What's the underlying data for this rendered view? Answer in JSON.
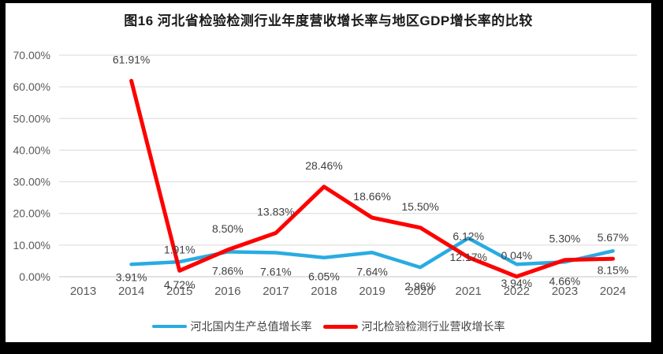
{
  "title": "图16 河北省检验检测行业年度营收增长率与地区GDP增长率的比较",
  "chart_data": {
    "type": "line",
    "title": "图16 河北省检验检测行业年度营收增长率与地区GDP增长率的比较",
    "categories": [
      "2013",
      "2014",
      "2015",
      "2016",
      "2017",
      "2018",
      "2019",
      "2020",
      "2021",
      "2022",
      "2023",
      "2024"
    ],
    "series": [
      {
        "name": "河北国内生产总值增长率",
        "color": "#29ABE2",
        "values": [
          null,
          3.91,
          4.72,
          7.86,
          7.61,
          6.05,
          7.64,
          2.96,
          12.17,
          3.94,
          4.66,
          8.15
        ]
      },
      {
        "name": "河北检验检测行业营收增长率",
        "color": "#FF0000",
        "values": [
          null,
          61.91,
          1.91,
          8.5,
          13.83,
          28.46,
          18.66,
          15.5,
          6.12,
          0.04,
          5.3,
          5.67
        ]
      }
    ],
    "y_ticks": [
      "0.00%",
      "10.00%",
      "20.00%",
      "30.00%",
      "40.00%",
      "50.00%",
      "60.00%",
      "70.00%"
    ],
    "ylim": [
      0,
      70
    ],
    "ytick_step": 10,
    "grid": true,
    "data_labels": true,
    "legend_position": "bottom"
  },
  "colors": {
    "grid": "#D9D9D9",
    "axis_text": "#595959",
    "data_label_text": "#404040",
    "legend_text": "#404040",
    "frame": "#000000",
    "background": "#FFFFFF"
  }
}
